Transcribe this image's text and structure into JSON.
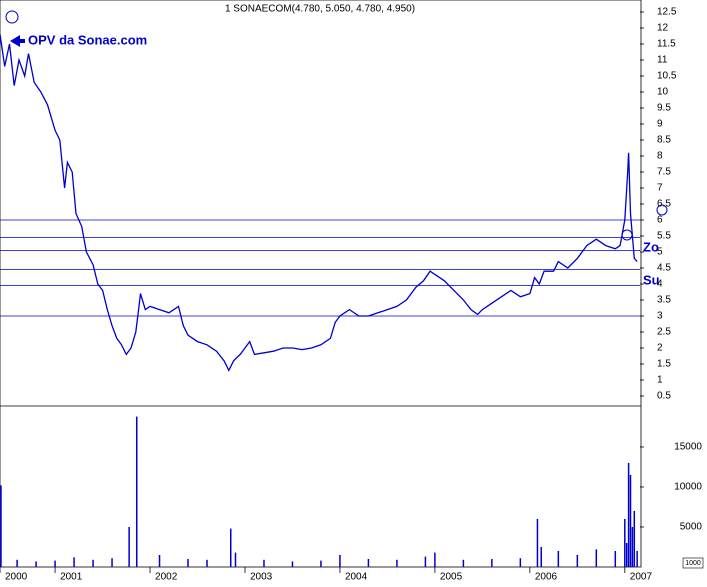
{
  "chart_data": [
    {
      "type": "line",
      "title": "1 SONAECOM(4.780, 5.050, 4.780, 4.950)",
      "annotations": [
        "OPV da Sonae.com",
        "Zo",
        "Su"
      ],
      "xlim": [
        2000.42,
        2007.16
      ],
      "ylim": [
        0.25,
        12.75
      ],
      "yticks": [
        0.5,
        1,
        1.5,
        2,
        2.5,
        3,
        3.5,
        4,
        4.5,
        5,
        5.5,
        6,
        6.5,
        7,
        7.5,
        8,
        8.5,
        9,
        9.5,
        10,
        10.5,
        11,
        11.5,
        12,
        12.5
      ],
      "levels": [
        6.0,
        5.45,
        5.05,
        4.45,
        3.95,
        3.0
      ],
      "series": [
        {
          "color": "#0000cc",
          "x": [
            2000.42,
            2000.47,
            2000.52,
            2000.57,
            2000.62,
            2000.68,
            2000.72,
            2000.78,
            2000.85,
            2000.92,
            2001.0,
            2001.05,
            2001.1,
            2001.13,
            2001.18,
            2001.22,
            2001.28,
            2001.33,
            2001.4,
            2001.45,
            2001.5,
            2001.55,
            2001.6,
            2001.65,
            2001.7,
            2001.75,
            2001.8,
            2001.85,
            2001.88,
            2001.9,
            2001.95,
            2002.0,
            2002.1,
            2002.2,
            2002.3,
            2002.35,
            2002.4,
            2002.5,
            2002.6,
            2002.7,
            2002.78,
            2002.83,
            2002.88,
            2002.95,
            2003.0,
            2003.05,
            2003.1,
            2003.2,
            2003.3,
            2003.4,
            2003.5,
            2003.6,
            2003.7,
            2003.8,
            2003.9,
            2003.95,
            2004.0,
            2004.1,
            2004.2,
            2004.3,
            2004.4,
            2004.5,
            2004.6,
            2004.7,
            2004.8,
            2004.88,
            2004.95,
            2005.0,
            2005.1,
            2005.2,
            2005.3,
            2005.38,
            2005.45,
            2005.5,
            2005.6,
            2005.7,
            2005.8,
            2005.9,
            2006.0,
            2006.05,
            2006.1,
            2006.15,
            2006.25,
            2006.3,
            2006.4,
            2006.5,
            2006.6,
            2006.7,
            2006.8,
            2006.9,
            2006.95,
            2007.0,
            2007.03,
            2007.04,
            2007.06,
            2007.08,
            2007.1,
            2007.13
          ],
          "values": [
            11.8,
            10.8,
            11.5,
            10.2,
            11.0,
            10.5,
            11.2,
            10.3,
            10.0,
            9.6,
            8.8,
            8.5,
            7.0,
            7.8,
            7.5,
            6.2,
            5.8,
            5.0,
            4.6,
            4.0,
            3.8,
            3.2,
            2.7,
            2.3,
            2.1,
            1.8,
            2.0,
            2.5,
            3.2,
            3.7,
            3.2,
            3.3,
            3.2,
            3.1,
            3.3,
            2.7,
            2.4,
            2.2,
            2.1,
            1.9,
            1.6,
            1.3,
            1.6,
            1.8,
            2.0,
            2.2,
            1.8,
            1.85,
            1.9,
            2.0,
            2.0,
            1.95,
            2.0,
            2.1,
            2.3,
            2.8,
            3.0,
            3.2,
            3.0,
            3.0,
            3.1,
            3.2,
            3.3,
            3.5,
            3.9,
            4.1,
            4.4,
            4.3,
            4.1,
            3.8,
            3.5,
            3.2,
            3.05,
            3.2,
            3.4,
            3.6,
            3.8,
            3.6,
            3.7,
            4.2,
            4.0,
            4.4,
            4.4,
            4.7,
            4.5,
            4.8,
            5.2,
            5.4,
            5.2,
            5.1,
            5.2,
            6.0,
            7.5,
            8.1,
            6.2,
            5.5,
            4.8,
            4.7
          ]
        }
      ]
    },
    {
      "type": "bar",
      "volume_unit": "1000",
      "xlim": [
        2000.42,
        2007.16
      ],
      "ylim": [
        0,
        20000
      ],
      "yticks": [
        5000,
        10000,
        15000
      ],
      "xticks": [
        {
          "value": 2000.42,
          "label": "2000"
        },
        2001,
        2002,
        2003,
        2004,
        2005,
        2006,
        2007
      ],
      "series": [
        {
          "color": "#0000cc",
          "x": [
            2000.43,
            2000.6,
            2000.8,
            2001.0,
            2001.2,
            2001.4,
            2001.6,
            2001.78,
            2001.86,
            2002.1,
            2002.4,
            2002.6,
            2002.85,
            2002.9,
            2003.2,
            2003.5,
            2003.8,
            2004.0,
            2004.3,
            2004.6,
            2004.9,
            2005.0,
            2005.3,
            2005.6,
            2005.9,
            2006.08,
            2006.12,
            2006.3,
            2006.5,
            2006.7,
            2006.9,
            2007.0,
            2007.02,
            2007.04,
            2007.06,
            2007.08,
            2007.1,
            2007.13
          ],
          "values": [
            10200,
            900,
            700,
            800,
            1200,
            900,
            1100,
            5000,
            18800,
            1500,
            1000,
            900,
            4800,
            1800,
            900,
            700,
            800,
            1500,
            1000,
            900,
            1300,
            1800,
            900,
            1000,
            1100,
            6000,
            2500,
            2000,
            1500,
            2200,
            2000,
            6000,
            3000,
            13000,
            11500,
            5000,
            7000,
            2000
          ]
        }
      ]
    }
  ]
}
